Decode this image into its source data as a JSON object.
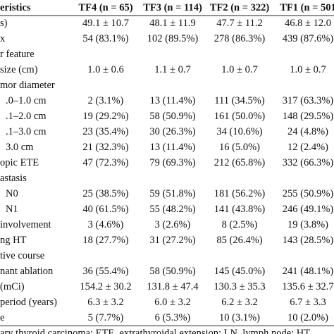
{
  "table": {
    "header": [
      "eristics",
      "TF4 (n = 65)",
      "TF3 (n = 114)",
      "TF2 (n = 322)",
      "TF1 (n = 501"
    ],
    "rows": [
      [
        "s)",
        "49.1 ± 10.7",
        "48.1 ± 11.9",
        "47.7 ± 11.2",
        "46.8 ± 12.0"
      ],
      [
        "x",
        "54 (83.1%)",
        "102 (89.5%)",
        "278 (86.3%)",
        "439 (87.6%)"
      ],
      [
        "r feature"
      ],
      [
        "size (cm)",
        "1.0 ± 0.6",
        "1.1 ± 0.7",
        "1.0 ± 0.7",
        "1.0 ± 0.7"
      ],
      [
        "mor diameter"
      ],
      [
        ".0–1.0 cm",
        "2 (3.1%)",
        "13 (11.4%)",
        "111 (34.5%)",
        "317 (63.3%)"
      ],
      [
        ".1–2.0 cm",
        "19 (29.2%)",
        "58 (50.9%)",
        "161 (50.0%)",
        "148 (29.5%)"
      ],
      [
        ".1–3.0 cm",
        "23 (35.4%)",
        "30 (26.3%)",
        "34 (10.6%)",
        "24 (4.8%)"
      ],
      [
        "3.0 cm",
        "21 (32.3%)",
        "13 (11.4%)",
        "16 (5.0%)",
        "12 (2.4%)"
      ],
      [
        "opic ETE",
        "47 (72.3%)",
        "79 (69.3%)",
        "212 (65.8%)",
        "332 (66.3%)"
      ],
      [
        "astasis"
      ],
      [
        "N0",
        "25 (38.5%)",
        "59 (51.8%)",
        "181 (56.2%)",
        "255 (50.9%)"
      ],
      [
        "N1",
        "40 (61.5%)",
        "55 (48.2%)",
        "141 (43.8%)",
        "246 (49.1%)"
      ],
      [
        "involvement",
        "3 (4.6%)",
        "3 (2.6%)",
        "8 (2.5%)",
        "19 (3.8%)"
      ],
      [
        "ng HT",
        "18 (27.7%)",
        "31 (27.2%)",
        "85 (26.4%)",
        "143 (28.5%)"
      ],
      [
        "tive course"
      ],
      [
        "nant ablation",
        "36 (55.4%)",
        "58 (50.9%)",
        "145 (45.0%)",
        "241 (48.1%)"
      ],
      [
        "(mCi)",
        "154.2 ± 30.2",
        "131.8 ± 47.4",
        "130.3 ± 35.3",
        "135.6 ± 32.7"
      ],
      [
        "period (years)",
        "6.3 ± 3.2",
        "6.0 ± 3.2",
        "6.2 ± 3.2",
        "6.7 ± 3.3"
      ],
      [
        "e",
        "5 (7.7%)",
        "6 (5.3%)",
        "10 (3.1%)",
        "10 (2.0%)"
      ]
    ],
    "footnote": "ary thyroid carcinoma; ETE, extrathyroidal extension; LN, lymph node; HT,"
  }
}
